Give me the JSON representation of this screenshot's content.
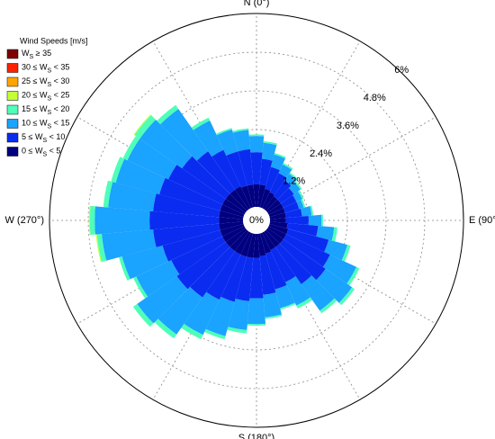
{
  "chart_data": {
    "type": "windrose",
    "legend_title": "Wind Speeds [m/s]",
    "x": [
      0,
      10,
      20,
      30,
      40,
      50,
      60,
      70,
      80,
      90,
      100,
      110,
      120,
      130,
      140,
      150,
      160,
      170,
      180,
      190,
      200,
      210,
      220,
      230,
      240,
      250,
      260,
      270,
      280,
      290,
      300,
      310,
      320,
      330,
      340,
      350
    ],
    "xticks": [
      {
        "value": 0,
        "label": "N (0°)"
      },
      {
        "value": 90,
        "label": "E (90°"
      },
      {
        "value": 180,
        "label": "S (180°)"
      },
      {
        "value": 270,
        "label": "W (270°)"
      }
    ],
    "ylim": [
      0,
      6
    ],
    "yticks": [
      {
        "value": 0,
        "label": "0%"
      },
      {
        "value": 1.2,
        "label": "1.2%"
      },
      {
        "value": 2.4,
        "label": "2.4%"
      },
      {
        "value": 3.6,
        "label": "3.6%"
      },
      {
        "value": 4.8,
        "label": "4.8%"
      },
      {
        "value": 6,
        "label": "6%"
      }
    ],
    "series": [
      {
        "name": "WS ≥ 35",
        "color": "#800000",
        "values": [
          0,
          0,
          0,
          0,
          0,
          0,
          0,
          0,
          0,
          0,
          0,
          0,
          0,
          0,
          0,
          0,
          0,
          0,
          0,
          0,
          0,
          0,
          0,
          0,
          0,
          0,
          0,
          0,
          0,
          0,
          0,
          0,
          0,
          0,
          0,
          0
        ]
      },
      {
        "name": "30 ≤ WS < 35",
        "color": "#ff2200",
        "values": [
          0,
          0,
          0,
          0,
          0,
          0,
          0,
          0,
          0,
          0,
          0,
          0,
          0,
          0,
          0,
          0,
          0,
          0,
          0,
          0,
          0,
          0,
          0,
          0,
          0,
          0,
          0,
          0,
          0,
          0,
          0,
          0,
          0,
          0,
          0,
          0
        ]
      },
      {
        "name": "25 ≤ WS < 30",
        "color": "#ffa500",
        "values": [
          0,
          0,
          0,
          0,
          0,
          0,
          0,
          0,
          0,
          0,
          0,
          0,
          0,
          0,
          0,
          0,
          0,
          0,
          0,
          0,
          0,
          0,
          0,
          0,
          0,
          0,
          0,
          0,
          0,
          0,
          0,
          0,
          0,
          0,
          0,
          0
        ]
      },
      {
        "name": "20 ≤ WS < 25",
        "color": "#c4ff3a",
        "values": [
          0,
          0,
          0,
          0,
          0,
          0,
          0,
          0,
          0,
          0,
          0,
          0,
          0,
          0,
          0,
          0,
          0,
          0,
          0,
          0,
          0,
          0,
          0,
          0,
          0,
          0,
          0.03,
          0.03,
          0,
          0,
          0,
          0.03,
          0,
          0,
          0,
          0
        ]
      },
      {
        "name": "15 ≤ WS < 20",
        "color": "#4dffb8",
        "values": [
          0.05,
          0.05,
          0.05,
          0.05,
          0.05,
          0.05,
          0.05,
          0.05,
          0.05,
          0.05,
          0.1,
          0.1,
          0.1,
          0.1,
          0.1,
          0.1,
          0.05,
          0.05,
          0.05,
          0.1,
          0.1,
          0.15,
          0.15,
          0.15,
          0.1,
          0.1,
          0.15,
          0.15,
          0.15,
          0.15,
          0.15,
          0.2,
          0.15,
          0.1,
          0.05,
          0.05
        ]
      },
      {
        "name": "10 ≤ WS < 15",
        "color": "#1aa3ff",
        "values": [
          0.5,
          0.5,
          0.4,
          0.3,
          0.25,
          0.25,
          0.2,
          0.15,
          0.3,
          0.4,
          0.5,
          0.6,
          0.9,
          1.0,
          1.0,
          0.8,
          0.6,
          0.7,
          0.8,
          0.9,
          1.1,
          1.2,
          1.4,
          1.5,
          1.2,
          1.3,
          1.6,
          1.7,
          1.4,
          1.4,
          1.4,
          1.6,
          1.6,
          1.0,
          0.7,
          0.6
        ]
      },
      {
        "name": "5 ≤ WS < 10",
        "color": "#0a2cf0",
        "values": [
          1.0,
          0.8,
          0.7,
          0.65,
          0.6,
          0.5,
          0.45,
          0.45,
          0.5,
          0.7,
          0.95,
          1.3,
          1.5,
          1.6,
          1.4,
          1.1,
          1.15,
          1.2,
          1.25,
          1.35,
          1.45,
          1.55,
          1.75,
          1.85,
          1.75,
          1.85,
          2.05,
          2.15,
          2.05,
          1.95,
          1.85,
          1.65,
          1.45,
          1.25,
          1.1,
          1.1
        ]
      },
      {
        "name": "0 ≤ WS < 5",
        "color": "#000080",
        "values": [
          0.7,
          0.7,
          0.6,
          0.55,
          0.5,
          0.5,
          0.5,
          0.5,
          0.5,
          0.5,
          0.55,
          0.6,
          0.6,
          0.6,
          0.6,
          0.6,
          0.65,
          0.7,
          0.75,
          0.75,
          0.75,
          0.75,
          0.75,
          0.75,
          0.75,
          0.75,
          0.75,
          0.75,
          0.75,
          0.75,
          0.75,
          0.75,
          0.75,
          0.75,
          0.7,
          0.7
        ]
      }
    ]
  }
}
